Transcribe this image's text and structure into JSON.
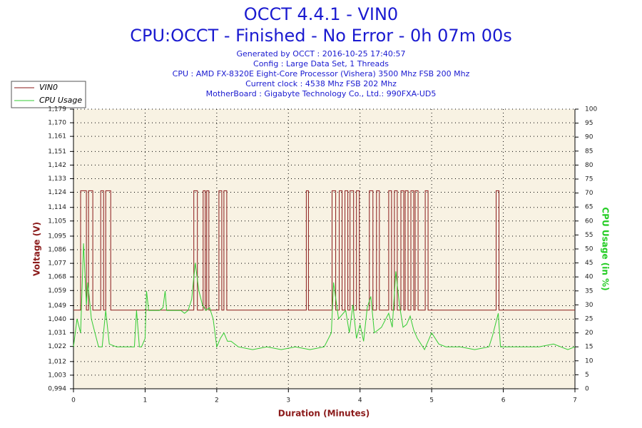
{
  "chart_data": {
    "type": "line",
    "title": "OCCT 4.4.1 - VIN0",
    "subtitle": "CPU:OCCT - Finished - No Error - 0h 07m 00s",
    "info": [
      "Generated by OCCT : 2016-10-25 17:40:57",
      "Config : Large Data Set, 1 Threads",
      "CPU : AMD FX-8320E Eight-Core Processor (Vishera) 3500 Mhz FSB 200 Mhz",
      "Current clock : 4538 Mhz FSB 202 Mhz",
      "MotherBoard : Gigabyte Technology Co., Ltd.: 990FXA-UD5"
    ],
    "xlabel": "Duration (Minutes)",
    "ylabel": "Voltage (V)",
    "y2label": "CPU Usage (in %)",
    "xlim": [
      0,
      7
    ],
    "xticks": [
      0,
      1,
      2,
      3,
      4,
      5,
      6,
      7
    ],
    "ylim": [
      0.994,
      1.179
    ],
    "yticks": [
      {
        "value": 0.994,
        "label": "0,994"
      },
      {
        "value": 1.003,
        "label": "1,003"
      },
      {
        "value": 1.012,
        "label": "1,012"
      },
      {
        "value": 1.022,
        "label": "1,022"
      },
      {
        "value": 1.031,
        "label": "1,031"
      },
      {
        "value": 1.04,
        "label": "1,040"
      },
      {
        "value": 1.049,
        "label": "1,049"
      },
      {
        "value": 1.059,
        "label": "1,059"
      },
      {
        "value": 1.068,
        "label": "1,068"
      },
      {
        "value": 1.077,
        "label": "1,077"
      },
      {
        "value": 1.086,
        "label": "1,086"
      },
      {
        "value": 1.095,
        "label": "1,095"
      },
      {
        "value": 1.105,
        "label": "1,105"
      },
      {
        "value": 1.114,
        "label": "1,114"
      },
      {
        "value": 1.124,
        "label": "1,124"
      },
      {
        "value": 1.133,
        "label": "1,133"
      },
      {
        "value": 1.142,
        "label": "1,142"
      },
      {
        "value": 1.151,
        "label": "1,151"
      },
      {
        "value": 1.161,
        "label": "1,161"
      },
      {
        "value": 1.17,
        "label": "1,170"
      },
      {
        "value": 1.179,
        "label": "1,179"
      }
    ],
    "y2lim": [
      0,
      100
    ],
    "y2ticks": [
      0,
      5,
      10,
      15,
      20,
      25,
      30,
      35,
      40,
      45,
      50,
      55,
      60,
      65,
      70,
      75,
      80,
      85,
      90,
      95,
      100
    ],
    "grid": true,
    "legend": "top-left",
    "series": [
      {
        "name": "VIN0",
        "color": "#8b1a1a",
        "x": [
          0,
          0.1,
          0.1,
          0.18,
          0.18,
          0.21,
          0.21,
          0.27,
          0.27,
          0.38,
          0.38,
          0.42,
          0.42,
          0.45,
          0.45,
          0.52,
          0.52,
          1.68,
          1.68,
          1.73,
          1.73,
          1.81,
          1.81,
          1.84,
          1.84,
          1.86,
          1.86,
          1.89,
          1.89,
          2.03,
          2.03,
          2.07,
          2.07,
          2.1,
          2.1,
          2.14,
          2.14,
          3.25,
          3.25,
          3.28,
          3.28,
          3.61,
          3.61,
          3.66,
          3.66,
          3.71,
          3.71,
          3.75,
          3.75,
          3.79,
          3.79,
          3.83,
          3.83,
          3.86,
          3.86,
          3.91,
          3.91,
          3.95,
          3.95,
          3.99,
          3.99,
          4.13,
          4.13,
          4.18,
          4.18,
          4.23,
          4.23,
          4.27,
          4.27,
          4.4,
          4.4,
          4.44,
          4.44,
          4.48,
          4.48,
          4.52,
          4.52,
          4.57,
          4.57,
          4.61,
          4.61,
          4.63,
          4.63,
          4.67,
          4.67,
          4.71,
          4.71,
          4.75,
          4.75,
          4.77,
          4.77,
          4.81,
          4.81,
          4.91,
          4.91,
          4.95,
          4.95,
          5.9,
          5.9,
          5.94,
          5.94,
          7
        ],
        "values": [
          1.046,
          1.046,
          1.125,
          1.125,
          1.046,
          1.046,
          1.125,
          1.125,
          1.046,
          1.046,
          1.125,
          1.125,
          1.046,
          1.046,
          1.125,
          1.125,
          1.046,
          1.046,
          1.125,
          1.125,
          1.046,
          1.046,
          1.125,
          1.125,
          1.046,
          1.046,
          1.125,
          1.125,
          1.046,
          1.046,
          1.125,
          1.125,
          1.046,
          1.046,
          1.125,
          1.125,
          1.046,
          1.046,
          1.125,
          1.125,
          1.046,
          1.046,
          1.125,
          1.125,
          1.046,
          1.046,
          1.125,
          1.125,
          1.046,
          1.046,
          1.125,
          1.125,
          1.046,
          1.046,
          1.125,
          1.125,
          1.046,
          1.046,
          1.125,
          1.125,
          1.046,
          1.046,
          1.125,
          1.125,
          1.046,
          1.046,
          1.125,
          1.125,
          1.046,
          1.046,
          1.125,
          1.125,
          1.046,
          1.046,
          1.125,
          1.125,
          1.046,
          1.046,
          1.125,
          1.125,
          1.046,
          1.046,
          1.125,
          1.125,
          1.046,
          1.046,
          1.125,
          1.125,
          1.046,
          1.046,
          1.125,
          1.125,
          1.046,
          1.046,
          1.125,
          1.125,
          1.046,
          1.046,
          1.125,
          1.125,
          1.046,
          1.046
        ]
      },
      {
        "name": "CPU Usage",
        "color": "#33cc33",
        "axis": "y2",
        "x": [
          0,
          0.05,
          0.1,
          0.14,
          0.18,
          0.2,
          0.25,
          0.3,
          0.35,
          0.4,
          0.45,
          0.5,
          0.6,
          0.7,
          0.8,
          0.85,
          0.88,
          0.92,
          0.95,
          1.0,
          1.02,
          1.05,
          1.1,
          1.2,
          1.25,
          1.28,
          1.3,
          1.4,
          1.5,
          1.55,
          1.6,
          1.65,
          1.7,
          1.75,
          1.8,
          1.85,
          1.9,
          1.95,
          2.0,
          2.05,
          2.1,
          2.15,
          2.2,
          2.3,
          2.5,
          2.7,
          2.9,
          3.1,
          3.3,
          3.5,
          3.6,
          3.63,
          3.7,
          3.8,
          3.85,
          3.9,
          3.95,
          4.0,
          4.05,
          4.1,
          4.15,
          4.2,
          4.3,
          4.4,
          4.45,
          4.5,
          4.55,
          4.6,
          4.65,
          4.7,
          4.75,
          4.8,
          4.9,
          5.0,
          5.1,
          5.2,
          5.4,
          5.6,
          5.8,
          5.85,
          5.9,
          5.93,
          5.96,
          6.1,
          6.3,
          6.5,
          6.7,
          6.9,
          7.0
        ],
        "values": [
          15,
          25,
          20,
          52,
          30,
          38,
          25,
          20,
          15,
          15,
          28,
          16,
          15,
          15,
          15,
          15,
          28,
          15,
          15,
          18,
          35,
          28,
          28,
          28,
          29,
          35,
          28,
          28,
          28,
          27,
          28,
          32,
          45,
          35,
          30,
          28,
          29,
          25,
          15,
          18,
          20,
          17,
          17,
          15,
          14,
          15,
          14,
          15,
          14,
          15,
          20,
          38,
          25,
          28,
          20,
          30,
          18,
          23,
          17,
          29,
          33,
          20,
          22,
          27,
          22,
          42,
          30,
          22,
          23,
          26,
          21,
          18,
          14,
          20,
          16,
          15,
          15,
          14,
          15,
          19,
          24,
          27,
          15,
          15,
          15,
          15,
          16,
          14,
          15
        ]
      }
    ]
  }
}
